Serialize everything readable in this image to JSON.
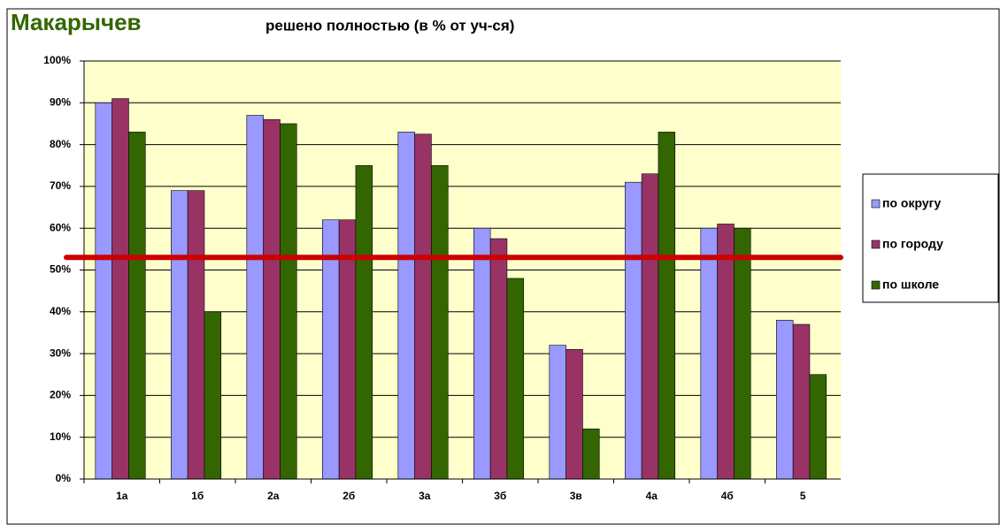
{
  "chart_data": {
    "type": "bar",
    "title": "Макарычев",
    "subtitle": "решено полностью (в % от уч-ся)",
    "categories": [
      "1а",
      "1б",
      "2а",
      "2б",
      "3а",
      "3б",
      "3в",
      "4а",
      "4б",
      "5"
    ],
    "series": [
      {
        "name": "по округу",
        "color": "#9999ff",
        "values": [
          90,
          69,
          87,
          62,
          83,
          60,
          32,
          71,
          60,
          38
        ]
      },
      {
        "name": "по городу",
        "color": "#993366",
        "values": [
          91,
          69,
          86,
          62,
          82.5,
          57.5,
          31,
          73,
          61,
          37
        ]
      },
      {
        "name": "по школе",
        "color": "#336600",
        "values": [
          83,
          40,
          85,
          75,
          75,
          48,
          12,
          83,
          60,
          25
        ]
      }
    ],
    "reference_line": {
      "value": 53,
      "color": "#cc0000"
    },
    "ylim": [
      0,
      100
    ],
    "yticks": [
      {
        "value": 0,
        "label": "0%"
      },
      {
        "value": 10,
        "label": "10%"
      },
      {
        "value": 20,
        "label": "20%"
      },
      {
        "value": 30,
        "label": "30%"
      },
      {
        "value": 40,
        "label": "40%"
      },
      {
        "value": 50,
        "label": "50%"
      },
      {
        "value": 60,
        "label": "60%"
      },
      {
        "value": 70,
        "label": "70%"
      },
      {
        "value": 80,
        "label": "80%"
      },
      {
        "value": 90,
        "label": "90%"
      },
      {
        "value": 100,
        "label": "100%"
      }
    ],
    "grid": true
  }
}
